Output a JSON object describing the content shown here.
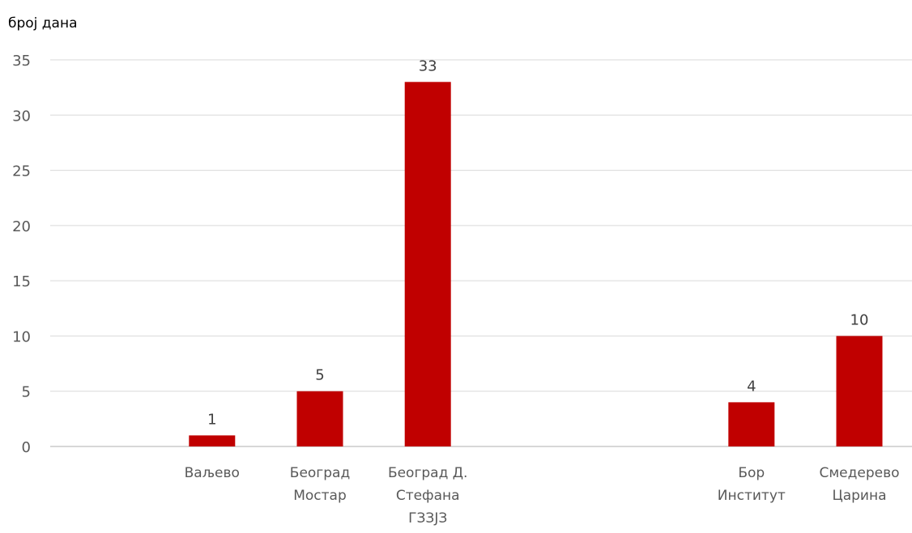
{
  "chart_data": {
    "type": "bar",
    "ylabel": "број дана",
    "ylim": [
      0,
      35
    ],
    "yticks": [
      0,
      5,
      10,
      15,
      20,
      25,
      30,
      35
    ],
    "grid": true,
    "categories": [
      [
        "",
        ""
      ],
      [
        "Ваљево"
      ],
      [
        "Београд",
        "Мостар"
      ],
      [
        "Београд Д.",
        "Стефана",
        "ГЗЗЈЗ"
      ],
      [
        ""
      ],
      [
        ""
      ],
      [
        "Бор",
        "Институт"
      ],
      [
        "Смедерево",
        "Царина"
      ]
    ],
    "values": [
      null,
      1,
      5,
      33,
      null,
      null,
      4,
      10
    ],
    "data_labels": [
      "",
      "1",
      "5",
      "33",
      "",
      "",
      "4",
      "10"
    ],
    "colors": {
      "bar": "#c00000",
      "grid": "#d9d9d9",
      "axis": "#bfbfbf"
    }
  }
}
